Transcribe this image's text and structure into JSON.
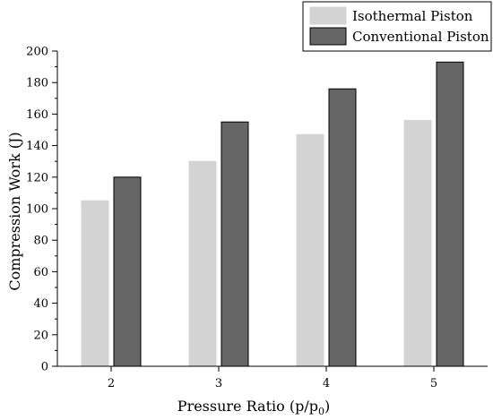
{
  "chart_data": {
    "type": "bar",
    "title": "",
    "xlabel": "Pressure Ratio (p/p",
    "xlabel_subscript": "0",
    "xlabel_suffix": ")",
    "ylabel": "Compression Work (J)",
    "categories": [
      "2",
      "3",
      "4",
      "5"
    ],
    "ylim": [
      0,
      200
    ],
    "yticks": [
      "0",
      "20",
      "40",
      "60",
      "80",
      "100",
      "120",
      "140",
      "160",
      "180",
      "200"
    ],
    "series": [
      {
        "name": "Isothermal Piston",
        "values": [
          105,
          130,
          147,
          156
        ],
        "color": "#d3d3d3",
        "stroke": "#d3d3d3"
      },
      {
        "name": "Conventional Piston",
        "values": [
          120,
          155,
          176,
          193
        ],
        "color": "#666666",
        "stroke": "#000000"
      }
    ],
    "legend": "top-right",
    "grid": false
  }
}
